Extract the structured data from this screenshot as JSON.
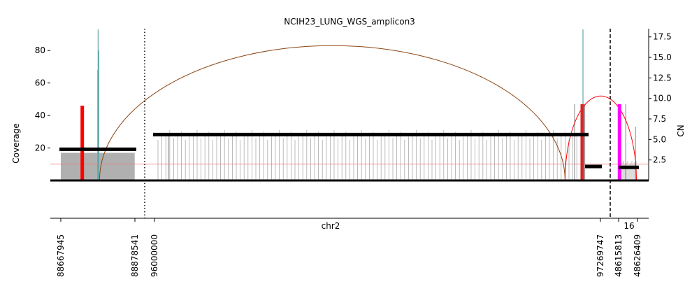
{
  "chart_data": {
    "type": "area",
    "title": "NCIH23_LUNG_WGS_amplicon3",
    "xlabel": "chr2",
    "ylabel_left": "Coverage",
    "ylabel_right": "CN",
    "left_axis": {
      "range": [
        0,
        93
      ],
      "ticks": [
        20,
        40,
        60,
        80
      ]
    },
    "right_axis": {
      "range": [
        0,
        18.5
      ],
      "ticks": [
        2.5,
        5.0,
        7.5,
        10.0,
        12.5,
        15.0,
        17.5
      ],
      "tick_labels": [
        "2.5",
        "5.0",
        "7.5",
        "10.0",
        "12.5",
        "15.0",
        "17.5"
      ]
    },
    "segments": [
      {
        "chromosome": "chr2",
        "start": 88667945,
        "end": 88878541
      },
      {
        "chromosome": "chr2",
        "start": 96000000,
        "end": 97269747
      },
      {
        "chromosome": "16",
        "start": 48615813,
        "end": 48626409
      }
    ],
    "x_tick_labels": [
      "88667945",
      "88878541",
      "96000000",
      "97269747",
      "48615813",
      "48626409"
    ],
    "chrom_labels": [
      "chr2",
      "16"
    ],
    "cn_segments": [
      {
        "segment": 0,
        "cn": 3.8
      },
      {
        "segment": 1,
        "cn": 5.6
      },
      {
        "segment": 1,
        "cn": 1.7
      },
      {
        "segment": 2,
        "cn": 1.6
      }
    ],
    "coverage_bars": [
      {
        "segment": 0,
        "bases": [
          0,
          60000
        ],
        "coverage": 17
      },
      {
        "segment": 0,
        "bases": [
          60000,
          210000
        ],
        "coverage": 17
      },
      {
        "segment": 0,
        "at": 106000,
        "coverage": 93
      },
      {
        "segment": 0,
        "at": 108000,
        "coverage": 80
      },
      {
        "segment": 0,
        "at": 105000,
        "coverage": 68
      },
      {
        "segment": 1,
        "at": 40000,
        "coverage": 28
      },
      {
        "segment": 1,
        "at": 1196000,
        "coverage": 47
      },
      {
        "segment": 1,
        "at": 1220000,
        "coverage": 93
      },
      {
        "segment": 1,
        "at": 1225000,
        "coverage": 47
      },
      {
        "segment": 2,
        "at": 4000,
        "coverage": 47
      },
      {
        "segment": 2,
        "at": 9500,
        "coverage": 33
      }
    ],
    "breakpoints": [
      {
        "color": "#8B4513",
        "from": {
          "segment": 0,
          "pos": 110000
        },
        "to": {
          "segment": 1,
          "pos": 1169000
        },
        "height": 83
      },
      {
        "color": "#ff0000",
        "from": {
          "segment": 1,
          "pos": 1169000
        },
        "to": {
          "segment": 2,
          "pos": 10000
        },
        "height": 52
      },
      {
        "color": "#ff0000",
        "from": {
          "segment": 0,
          "pos": 61000
        },
        "to": {
          "segment": 0,
          "pos": 61000
        },
        "height": 46
      },
      {
        "color": "#ff00ff",
        "from": {
          "segment": 2,
          "pos": 500
        },
        "to": {
          "segment": 2,
          "pos": 500
        },
        "height": 47
      },
      {
        "color": "#d62728",
        "from": {
          "segment": 1,
          "pos": 1218000
        },
        "to": {
          "segment": 1,
          "pos": 1218000
        },
        "height": 47
      }
    ],
    "reference_line": {
      "cn": 2.0,
      "color": "#f08080"
    },
    "grid": false,
    "legend": "none",
    "colors": {
      "coverage": "#b0b0b0",
      "coverage_spike": "#5fa8a8",
      "cn_segment": "#000000"
    }
  }
}
